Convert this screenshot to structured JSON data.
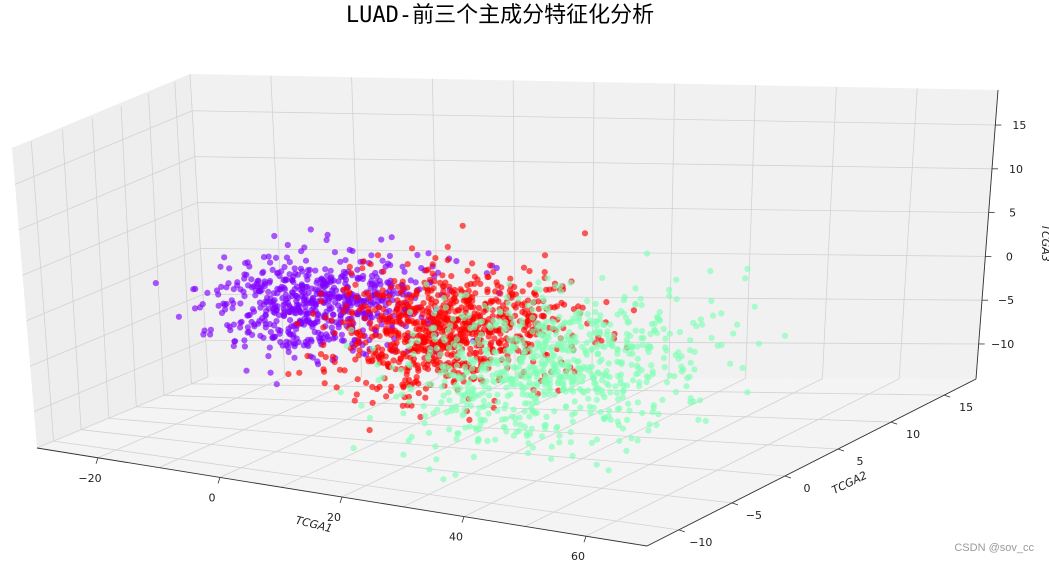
{
  "chart_data": {
    "type": "scatter",
    "projection": "3d",
    "title": "LUAD-前三个主成分特征化分析",
    "xlabel": "TCGA1",
    "ylabel": "TCGA2",
    "zlabel": "TCGA3",
    "xlim": [
      -30,
      70
    ],
    "ylim": [
      -13,
      18
    ],
    "zlim": [
      -14,
      19
    ],
    "xticks": [
      -20,
      0,
      20,
      40,
      60
    ],
    "yticks": [
      -10,
      -5,
      0,
      5,
      10,
      15
    ],
    "zticks": [
      -10,
      -5,
      0,
      5,
      10,
      15
    ],
    "grid": true,
    "colors": {
      "pane_floor": "#f4f4f4",
      "pane_side": "#eeeeee",
      "pane_back": "#f1f1f1",
      "gridline": "#d2d2d2"
    },
    "series": [
      {
        "color": "#8000ff",
        "center": [
          0,
          2,
          0
        ],
        "spread": [
          7,
          3.5,
          2.5
        ],
        "count": 650,
        "seed": 11
      },
      {
        "color": "#ff0000",
        "center": [
          20,
          0,
          -1
        ],
        "spread": [
          7,
          4,
          3
        ],
        "count": 850,
        "seed": 23
      },
      {
        "color": "#80ffb4",
        "center": [
          38,
          -2,
          -3
        ],
        "spread": [
          9,
          4.5,
          3.5
        ],
        "count": 800,
        "seed": 37
      }
    ]
  },
  "watermark": "CSDN @sov_cc"
}
